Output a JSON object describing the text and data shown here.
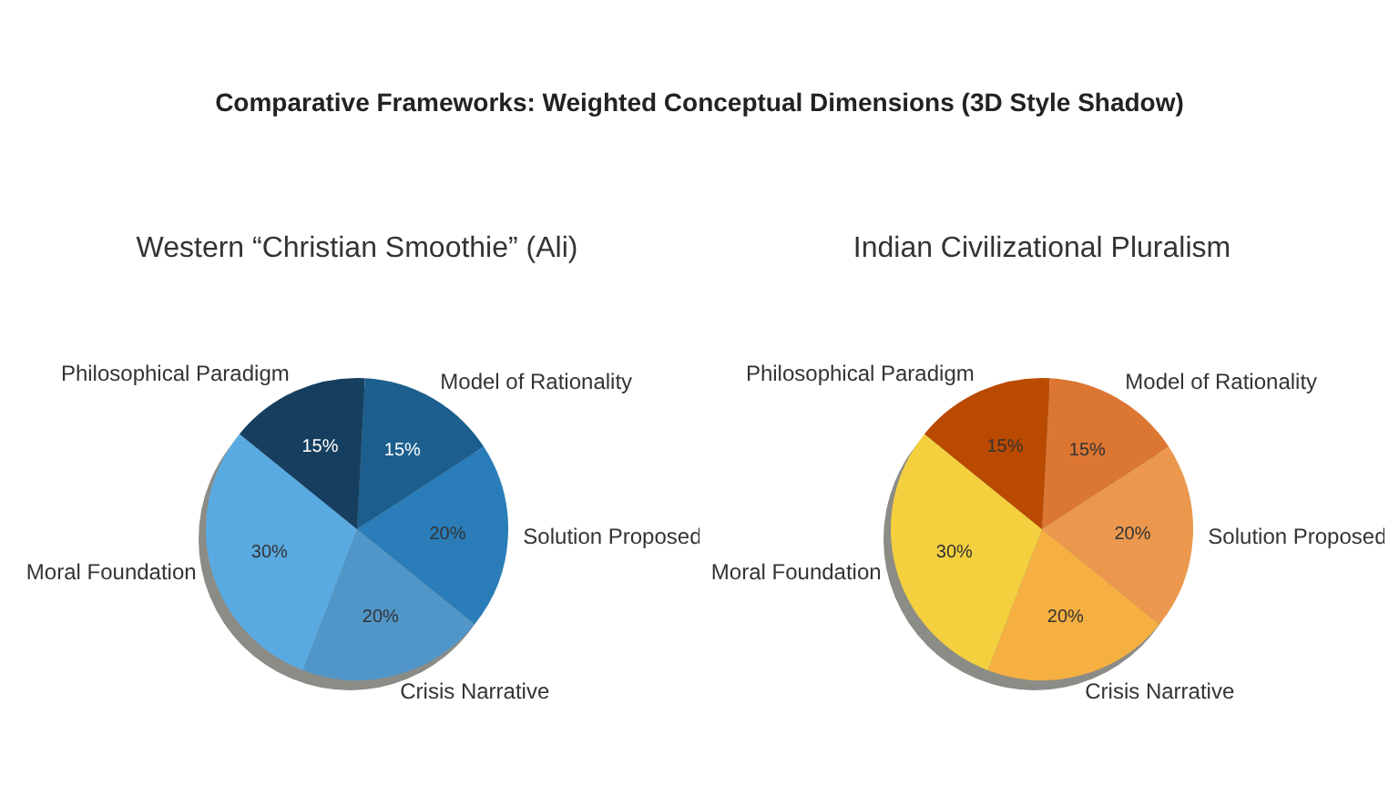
{
  "chart_data": [
    {
      "type": "pie",
      "title": "Comparative Frameworks: Weighted Conceptual Dimensions (3D Style Shadow)",
      "subtitle": "Western “Christian Smoothie” (Ali)",
      "categories": [
        "Model of Rationality",
        "Solution Proposed",
        "Crisis Narrative",
        "Moral Foundation",
        "Philosophical Paradigm"
      ],
      "values": [
        15,
        20,
        20,
        30,
        15
      ],
      "value_labels": [
        "15%",
        "20%",
        "20%",
        "30%",
        "15%"
      ],
      "colors": [
        "#1c5f8e",
        "#2a7db8",
        "#5096c8",
        "#5aaae2",
        "#163f5f"
      ],
      "legend": false
    },
    {
      "type": "pie",
      "title": "Indian Civilizational Pluralism",
      "categories": [
        "Model of Rationality",
        "Solution Proposed",
        "Crisis Narrative",
        "Moral Foundation",
        "Philosophical Paradigm"
      ],
      "values": [
        15,
        20,
        20,
        30,
        15
      ],
      "value_labels": [
        "15%",
        "20%",
        "20%",
        "30%",
        "15%"
      ],
      "colors": [
        "#dc7633",
        "#eb984e",
        "#f5b041",
        "#f4d03f",
        "#ba4a00"
      ],
      "legend": false
    }
  ]
}
